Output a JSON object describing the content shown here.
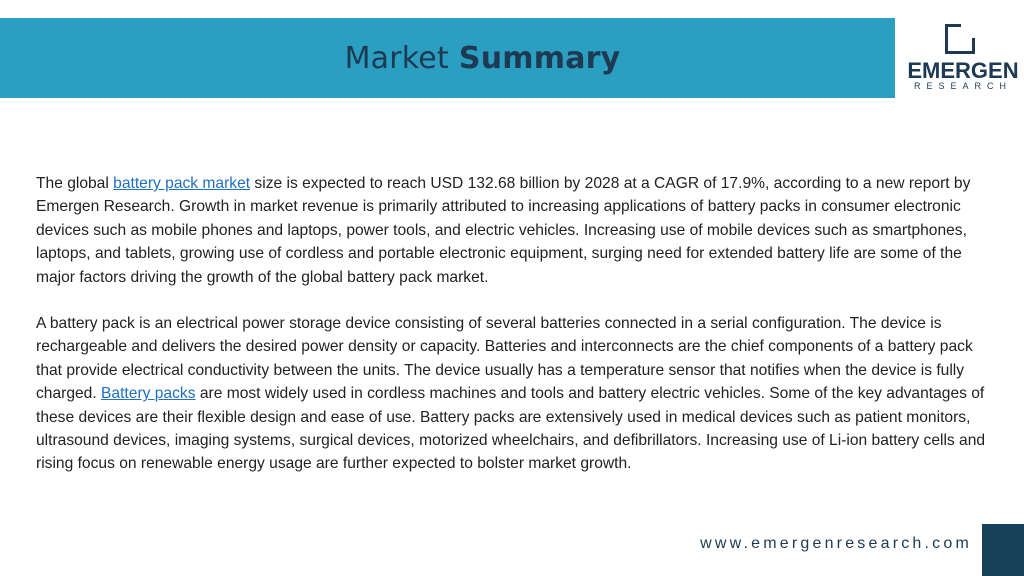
{
  "header": {
    "title_light": "Market",
    "title_bold": "Summary"
  },
  "logo": {
    "name": "EMERGEN",
    "sub": "RESEARCH"
  },
  "body": {
    "p1_pre": "The global ",
    "p1_link": "battery pack market",
    "p1_post": " size is expected to reach USD 132.68 billion by 2028 at a CAGR of 17.9%, according to a new report by Emergen Research. Growth in market revenue is primarily attributed to increasing applications of battery packs in consumer electronic devices such as mobile phones and laptops, power tools, and electric vehicles. Increasing use of mobile devices such as smartphones, laptops, and tablets, growing use of cordless and portable electronic equipment, surging need for extended battery life are some of the major factors driving the growth of the global battery pack market.",
    "p2_pre": "A battery pack is an electrical power storage device consisting of several batteries connected in a serial configuration. The device is rechargeable and delivers the desired power density or capacity. Batteries and interconnects are the chief components of a battery pack that provide electrical conductivity between the units. The device usually has a temperature sensor that notifies when the device is fully charged. ",
    "p2_link": "Battery packs",
    "p2_post": " are most widely used in cordless machines and tools and battery electric vehicles. Some of the key advantages of these devices are their flexible design and ease of use. Battery packs are extensively used in medical devices such as patient monitors, ultrasound devices, imaging systems, surgical devices, motorized wheelchairs, and defibrillators. Increasing use of Li-ion battery cells and rising focus on renewable energy usage are further expected to bolster market growth."
  },
  "footer": {
    "url": "www.emergenresearch.com"
  },
  "colors": {
    "header_band": "#2a9fc2",
    "title_text": "#1d3a52",
    "link": "#1f6fc2",
    "corner_block": "#17405a"
  }
}
